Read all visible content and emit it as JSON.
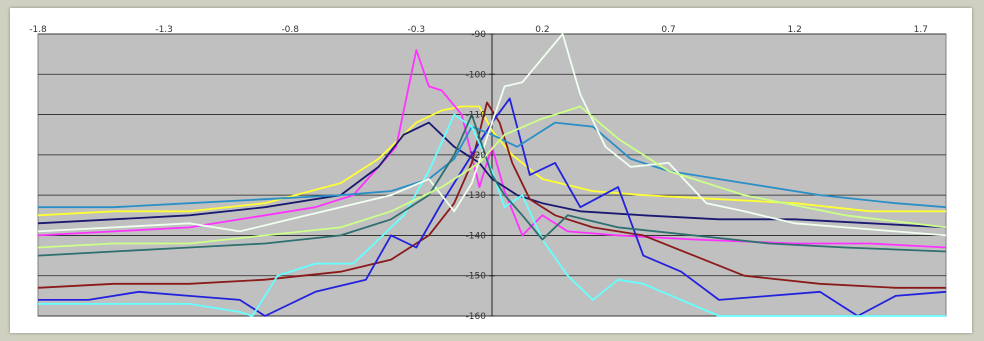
{
  "chart_data": {
    "type": "line",
    "title": "",
    "xlabel": "",
    "ylabel": "",
    "xlim": [
      -1.8,
      1.8
    ],
    "ylim": [
      -160,
      -90
    ],
    "x_ticks": [
      -1.8,
      -1.3,
      -0.8,
      -0.3,
      0.2,
      0.7,
      1.2,
      1.7
    ],
    "x_tick_labels": [
      "-1.8",
      "-1.3",
      "-0.8",
      "-0.3",
      "0.2",
      "0.7",
      "1.2",
      "1.7"
    ],
    "y_ticks": [
      -90,
      -100,
      -110,
      -120,
      -130,
      -140,
      -150,
      -160
    ],
    "y_tick_labels": [
      "-90",
      "-100",
      "-110",
      "-120",
      "-130",
      "-140",
      "-150",
      "-160"
    ],
    "grid": true,
    "plot_background": "#c0c0c0",
    "series": [
      {
        "color": "#ffff33",
        "x": [
          -1.8,
          -1.5,
          -1.2,
          -0.9,
          -0.6,
          -0.45,
          -0.3,
          -0.2,
          -0.12,
          -0.05,
          0.0,
          0.08,
          0.2,
          0.4,
          0.6,
          0.9,
          1.2,
          1.5,
          1.8
        ],
        "values": [
          -135,
          -134,
          -134,
          -132,
          -127,
          -121,
          -112,
          -109,
          -108,
          -108,
          -114,
          -120,
          -126,
          -129,
          -130,
          -131,
          -132,
          -134,
          -134
        ]
      },
      {
        "color": "#ff33ff",
        "x": [
          -1.8,
          -1.5,
          -1.2,
          -0.9,
          -0.7,
          -0.55,
          -0.45,
          -0.38,
          -0.3,
          -0.25,
          -0.2,
          -0.12,
          -0.05,
          0.0,
          0.05,
          0.12,
          0.2,
          0.3,
          0.5,
          0.8,
          1.2,
          1.5,
          1.8
        ],
        "values": [
          -140,
          -139,
          -138,
          -135,
          -133,
          -130,
          -123,
          -118,
          -94,
          -103,
          -104,
          -110,
          -128,
          -118,
          -129,
          -140,
          -135,
          -139,
          -140,
          -141,
          -142,
          -142,
          -143
        ]
      },
      {
        "color": "#191970",
        "x": [
          -1.8,
          -1.5,
          -1.2,
          -0.9,
          -0.6,
          -0.45,
          -0.35,
          -0.25,
          -0.15,
          -0.05,
          0.0,
          0.1,
          0.2,
          0.35,
          0.6,
          0.9,
          1.2,
          1.5,
          1.8
        ],
        "values": [
          -137,
          -136,
          -135,
          -133,
          -130,
          -123,
          -115,
          -112,
          -118,
          -122,
          -126,
          -130,
          -132,
          -134,
          -135,
          -136,
          -136,
          -137,
          -138
        ]
      },
      {
        "color": "#8b1a1a",
        "x": [
          -1.8,
          -1.5,
          -1.2,
          -0.9,
          -0.6,
          -0.4,
          -0.25,
          -0.15,
          -0.08,
          -0.02,
          0.03,
          0.08,
          0.15,
          0.25,
          0.4,
          0.6,
          0.8,
          1.0,
          1.3,
          1.6,
          1.8
        ],
        "values": [
          -153,
          -152,
          -152,
          -151,
          -149,
          -146,
          -140,
          -132,
          -122,
          -107,
          -112,
          -122,
          -131,
          -135,
          -138,
          -140,
          -145,
          -150,
          -152,
          -153,
          -153
        ]
      },
      {
        "color": "#2222dd",
        "x": [
          -1.8,
          -1.6,
          -1.4,
          -1.2,
          -1.0,
          -0.9,
          -0.7,
          -0.5,
          -0.4,
          -0.3,
          -0.2,
          -0.1,
          0.0,
          0.07,
          0.15,
          0.25,
          0.35,
          0.5,
          0.6,
          0.75,
          0.9,
          1.1,
          1.3,
          1.45,
          1.6,
          1.8
        ],
        "values": [
          -156,
          -156,
          -154,
          -155,
          -156,
          -161,
          -154,
          -151,
          -140,
          -143,
          -132,
          -122,
          -112,
          -106,
          -125,
          -122,
          -133,
          -128,
          -145,
          -149,
          -156,
          -155,
          -154,
          -161,
          -155,
          -154
        ]
      },
      {
        "color": "#2a8fc7",
        "x": [
          -1.8,
          -1.5,
          -1.2,
          -0.9,
          -0.6,
          -0.4,
          -0.25,
          -0.15,
          -0.08,
          0.0,
          0.1,
          0.25,
          0.4,
          0.55,
          0.7,
          1.0,
          1.3,
          1.6,
          1.8
        ],
        "values": [
          -133,
          -133,
          -132,
          -131,
          -130,
          -129,
          -126,
          -121,
          -113,
          -115,
          -118,
          -112,
          -113,
          -121,
          -124,
          -127,
          -130,
          -132,
          -133
        ]
      },
      {
        "color": "#66ffff",
        "x": [
          -1.8,
          -1.5,
          -1.2,
          -1.0,
          -0.95,
          -0.85,
          -0.7,
          -0.55,
          -0.45,
          -0.35,
          -0.25,
          -0.15,
          -0.08,
          0.0,
          0.05,
          0.12,
          0.2,
          0.3,
          0.4,
          0.5,
          0.6,
          0.75,
          0.9,
          1.0,
          1.2,
          1.4,
          1.6,
          1.8
        ],
        "values": [
          -157,
          -157,
          -157,
          -159,
          -163,
          -150,
          -147,
          -147,
          -141,
          -135,
          -124,
          -110,
          -113,
          -124,
          -133,
          -130,
          -141,
          -150,
          -156,
          -151,
          -152,
          -156,
          -163,
          -161,
          -160,
          -160,
          -164,
          -160
        ]
      },
      {
        "color": "#f0fff0",
        "x": [
          -1.8,
          -1.5,
          -1.2,
          -1.0,
          -0.8,
          -0.6,
          -0.4,
          -0.25,
          -0.15,
          -0.08,
          0.0,
          0.05,
          0.12,
          0.2,
          0.28,
          0.35,
          0.45,
          0.55,
          0.7,
          0.85,
          1.0,
          1.2,
          1.4,
          1.6,
          1.8
        ],
        "values": [
          -139,
          -138,
          -137,
          -139,
          -136,
          -133,
          -130,
          -126,
          -134,
          -127,
          -112,
          -103,
          -102,
          -96,
          -85,
          -105,
          -118,
          -123,
          -122,
          -132,
          -134,
          -137,
          -138,
          -139,
          -140
        ]
      },
      {
        "color": "#2f6f6f",
        "x": [
          -1.8,
          -1.5,
          -1.2,
          -0.9,
          -0.6,
          -0.4,
          -0.25,
          -0.15,
          -0.08,
          0.0,
          0.05,
          0.12,
          0.2,
          0.3,
          0.5,
          0.8,
          1.1,
          1.4,
          1.8
        ],
        "values": [
          -145,
          -144,
          -143,
          -142,
          -140,
          -136,
          -130,
          -120,
          -110,
          -125,
          -130,
          -135,
          -141,
          -135,
          -138,
          -140,
          -142,
          -143,
          -144
        ]
      },
      {
        "color": "#ccff88",
        "x": [
          -1.8,
          -1.5,
          -1.2,
          -0.9,
          -0.6,
          -0.4,
          -0.2,
          -0.05,
          0.05,
          0.2,
          0.35,
          0.5,
          0.7,
          1.0,
          1.4,
          1.8
        ],
        "values": [
          -143,
          -142,
          -142,
          -140,
          -138,
          -134,
          -128,
          -122,
          -115,
          -111,
          -108,
          -116,
          -124,
          -130,
          -135,
          -138
        ]
      }
    ]
  }
}
